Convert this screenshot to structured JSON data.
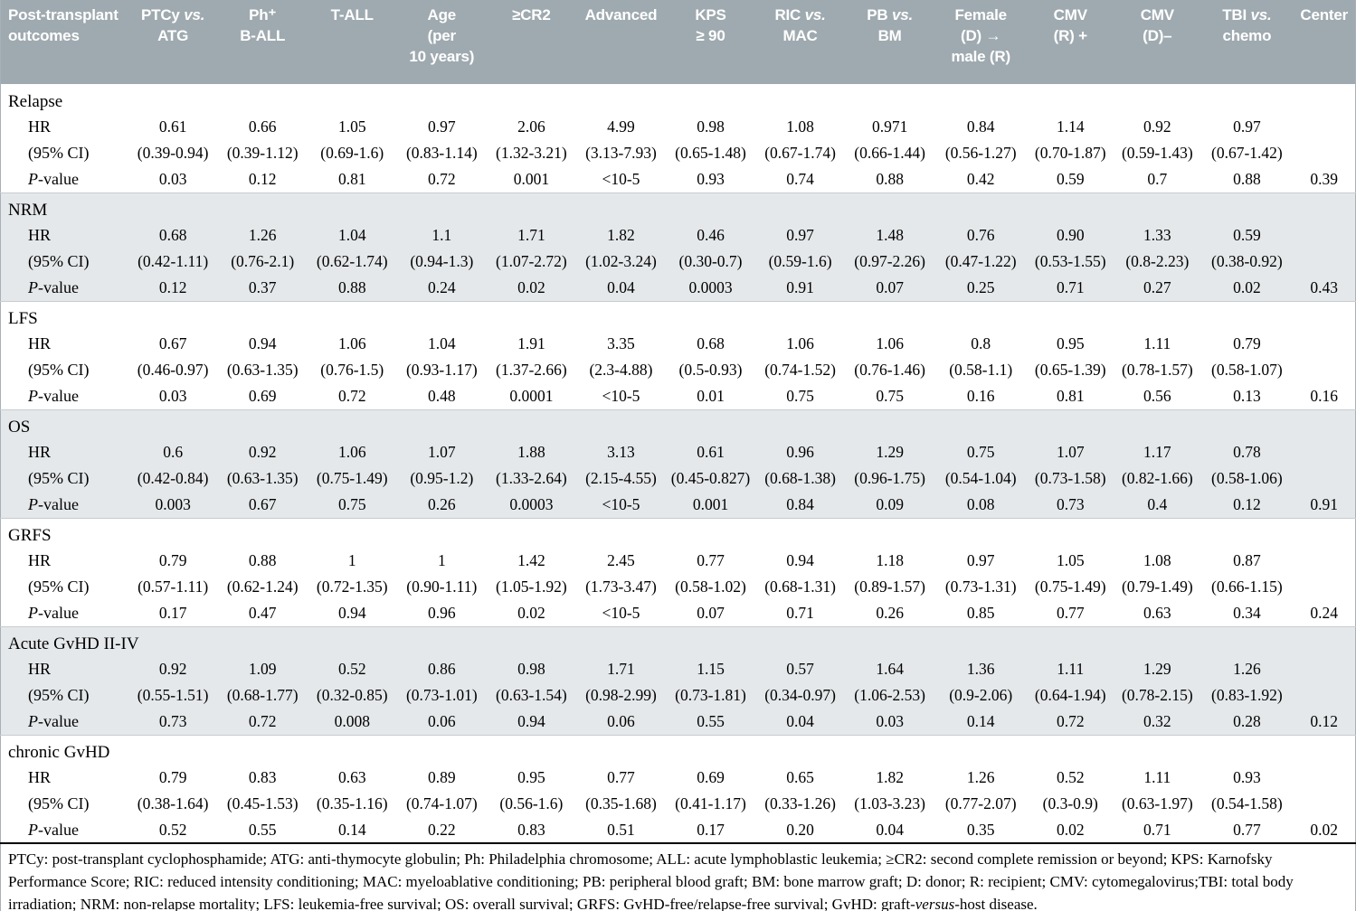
{
  "colors": {
    "header_bg": "#9faab0",
    "band_gray": "#e5e8ea",
    "band_white": "#ffffff"
  },
  "table": {
    "row_label_header_lines": [
      "Post-transplant",
      "outcomes"
    ],
    "columns": [
      {
        "id": "ptcy-vs-atg",
        "label_lines": [
          "PTCy vs.",
          "ATG"
        ]
      },
      {
        "id": "ph-b-all",
        "label_lines": [
          "Ph⁺",
          "B-ALL"
        ]
      },
      {
        "id": "t-all",
        "label_lines": [
          "T-ALL"
        ]
      },
      {
        "id": "age-per-10-years",
        "label_lines": [
          "Age",
          "(per",
          "10 years)"
        ]
      },
      {
        "id": "ge-cr2",
        "label_lines": [
          "≥CR2"
        ]
      },
      {
        "id": "advanced",
        "label_lines": [
          "Advanced"
        ]
      },
      {
        "id": "kps-ge-90",
        "label_lines": [
          "KPS",
          "≥ 90"
        ]
      },
      {
        "id": "ric-vs-mac",
        "label_lines": [
          "RIC vs.",
          "MAC"
        ]
      },
      {
        "id": "pb-vs-bm",
        "label_lines": [
          "PB vs.",
          "BM"
        ]
      },
      {
        "id": "female-d-male-r",
        "label_lines": [
          "Female",
          "(D) →",
          "male (R)"
        ]
      },
      {
        "id": "cmv-r-pos",
        "label_lines": [
          "CMV",
          "(R) +"
        ]
      },
      {
        "id": "cmv-d-neg",
        "label_lines": [
          "CMV",
          "(D)–"
        ]
      },
      {
        "id": "tbi-vs-chemo",
        "label_lines": [
          "TBI vs.",
          "chemo"
        ]
      },
      {
        "id": "center",
        "label_lines": [
          "Center"
        ]
      }
    ],
    "row_labels": {
      "hr": "HR",
      "ci": "(95% CI)",
      "p": "P-value"
    },
    "groups": [
      {
        "name": "Relapse",
        "hr": [
          "0.61",
          "0.66",
          "1.05",
          "0.97",
          "2.06",
          "4.99",
          "0.98",
          "1.08",
          "0.971",
          "0.84",
          "1.14",
          "0.92",
          "0.97",
          ""
        ],
        "ci": [
          "(0.39-0.94)",
          "(0.39-1.12)",
          "(0.69-1.6)",
          "(0.83-1.14)",
          "(1.32-3.21)",
          "(3.13-7.93)",
          "(0.65-1.48)",
          "(0.67-1.74)",
          "(0.66-1.44)",
          "(0.56-1.27)",
          "(0.70-1.87)",
          "(0.59-1.43)",
          "(0.67-1.42)",
          ""
        ],
        "p": [
          "0.03",
          "0.12",
          "0.81",
          "0.72",
          "0.001",
          "<10-5",
          "0.93",
          "0.74",
          "0.88",
          "0.42",
          "0.59",
          "0.7",
          "0.88",
          "0.39"
        ]
      },
      {
        "name": "NRM",
        "hr": [
          "0.68",
          "1.26",
          "1.04",
          "1.1",
          "1.71",
          "1.82",
          "0.46",
          "0.97",
          "1.48",
          "0.76",
          "0.90",
          "1.33",
          "0.59",
          ""
        ],
        "ci": [
          "(0.42-1.11)",
          "(0.76-2.1)",
          "(0.62-1.74)",
          "(0.94-1.3)",
          "(1.07-2.72)",
          "(1.02-3.24)",
          "(0.30-0.7)",
          "(0.59-1.6)",
          "(0.97-2.26)",
          "(0.47-1.22)",
          "(0.53-1.55)",
          "(0.8-2.23)",
          "(0.38-0.92)",
          ""
        ],
        "p": [
          "0.12",
          "0.37",
          "0.88",
          "0.24",
          "0.02",
          "0.04",
          "0.0003",
          "0.91",
          "0.07",
          "0.25",
          "0.71",
          "0.27",
          "0.02",
          "0.43"
        ]
      },
      {
        "name": "LFS",
        "hr": [
          "0.67",
          "0.94",
          "1.06",
          "1.04",
          "1.91",
          "3.35",
          "0.68",
          "1.06",
          "1.06",
          "0.8",
          "0.95",
          "1.11",
          "0.79",
          ""
        ],
        "ci": [
          "(0.46-0.97)",
          "(0.63-1.35)",
          "(0.76-1.5)",
          "(0.93-1.17)",
          "(1.37-2.66)",
          "(2.3-4.88)",
          "(0.5-0.93)",
          "(0.74-1.52)",
          "(0.76-1.46)",
          "(0.58-1.1)",
          "(0.65-1.39)",
          "(0.78-1.57)",
          "(0.58-1.07)",
          ""
        ],
        "p": [
          "0.03",
          "0.69",
          "0.72",
          "0.48",
          "0.0001",
          "<10-5",
          "0.01",
          "0.75",
          "0.75",
          "0.16",
          "0.81",
          "0.56",
          "0.13",
          "0.16"
        ]
      },
      {
        "name": "OS",
        "hr": [
          "0.6",
          "0.92",
          "1.06",
          "1.07",
          "1.88",
          "3.13",
          "0.61",
          "0.96",
          "1.29",
          "0.75",
          "1.07",
          "1.17",
          "0.78",
          ""
        ],
        "ci": [
          "(0.42-0.84)",
          "(0.63-1.35)",
          "(0.75-1.49)",
          "(0.95-1.2)",
          "(1.33-2.64)",
          "(2.15-4.55)",
          "(0.45-0.827)",
          "(0.68-1.38)",
          "(0.96-1.75)",
          "(0.54-1.04)",
          "(0.73-1.58)",
          "(0.82-1.66)",
          "(0.58-1.06)",
          ""
        ],
        "p": [
          "0.003",
          "0.67",
          "0.75",
          "0.26",
          "0.0003",
          "<10-5",
          "0.001",
          "0.84",
          "0.09",
          "0.08",
          "0.73",
          "0.4",
          "0.12",
          "0.91"
        ]
      },
      {
        "name": "GRFS",
        "hr": [
          "0.79",
          "0.88",
          "1",
          "1",
          "1.42",
          "2.45",
          "0.77",
          "0.94",
          "1.18",
          "0.97",
          "1.05",
          "1.08",
          "0.87",
          ""
        ],
        "ci": [
          "(0.57-1.11)",
          "(0.62-1.24)",
          "(0.72-1.35)",
          "(0.90-1.11)",
          "(1.05-1.92)",
          "(1.73-3.47)",
          "(0.58-1.02)",
          "(0.68-1.31)",
          "(0.89-1.57)",
          "(0.73-1.31)",
          "(0.75-1.49)",
          "(0.79-1.49)",
          "(0.66-1.15)",
          ""
        ],
        "p": [
          "0.17",
          "0.47",
          "0.94",
          "0.96",
          "0.02",
          "<10-5",
          "0.07",
          "0.71",
          "0.26",
          "0.85",
          "0.77",
          "0.63",
          "0.34",
          "0.24"
        ]
      },
      {
        "name": "Acute GvHD II-IV",
        "hr": [
          "0.92",
          "1.09",
          "0.52",
          "0.86",
          "0.98",
          "1.71",
          "1.15",
          "0.57",
          "1.64",
          "1.36",
          "1.11",
          "1.29",
          "1.26",
          ""
        ],
        "ci": [
          "(0.55-1.51)",
          "(0.68-1.77)",
          "(0.32-0.85)",
          "(0.73-1.01)",
          "(0.63-1.54)",
          "(0.98-2.99)",
          "(0.73-1.81)",
          "(0.34-0.97)",
          "(1.06-2.53)",
          "(0.9-2.06)",
          "(0.64-1.94)",
          "(0.78-2.15)",
          "(0.83-1.92)",
          ""
        ],
        "p": [
          "0.73",
          "0.72",
          "0.008",
          "0.06",
          "0.94",
          "0.06",
          "0.55",
          "0.04",
          "0.03",
          "0.14",
          "0.72",
          "0.32",
          "0.28",
          "0.12"
        ]
      },
      {
        "name": "chronic GvHD",
        "hr": [
          "0.79",
          "0.83",
          "0.63",
          "0.89",
          "0.95",
          "0.77",
          "0.69",
          "0.65",
          "1.82",
          "1.26",
          "0.52",
          "1.11",
          "0.93",
          ""
        ],
        "ci": [
          "(0.38-1.64)",
          "(0.45-1.53)",
          "(0.35-1.16)",
          "(0.74-1.07)",
          "(0.56-1.6)",
          "(0.35-1.68)",
          "(0.41-1.17)",
          "(0.33-1.26)",
          "(1.03-3.23)",
          "(0.77-2.07)",
          "(0.3-0.9)",
          "(0.63-1.97)",
          "(0.54-1.58)",
          ""
        ],
        "p": [
          "0.52",
          "0.55",
          "0.14",
          "0.22",
          "0.83",
          "0.51",
          "0.17",
          "0.20",
          "0.04",
          "0.35",
          "0.02",
          "0.71",
          "0.77",
          "0.02"
        ]
      }
    ]
  },
  "footnote": "PTCy: post-transplant cyclophosphamide; ATG: anti-thymocyte globulin; Ph: Philadelphia chromosome; ALL: acute lymphoblastic leukemia; ≥CR2: second complete remission or beyond; KPS: Karnofsky Performance Score; RIC: reduced intensity conditioning; MAC: myeloablative conditioning; PB: peripheral blood graft; BM: bone marrow graft; D: donor; R: recipient; CMV: cytomegalovirus;TBI: total body irradiation; NRM: non-relapse mortality; LFS: leukemia-free survival; OS: overall survival; GRFS: GvHD-free/relapse-free survival; GvHD: graft-versus-host disease."
}
